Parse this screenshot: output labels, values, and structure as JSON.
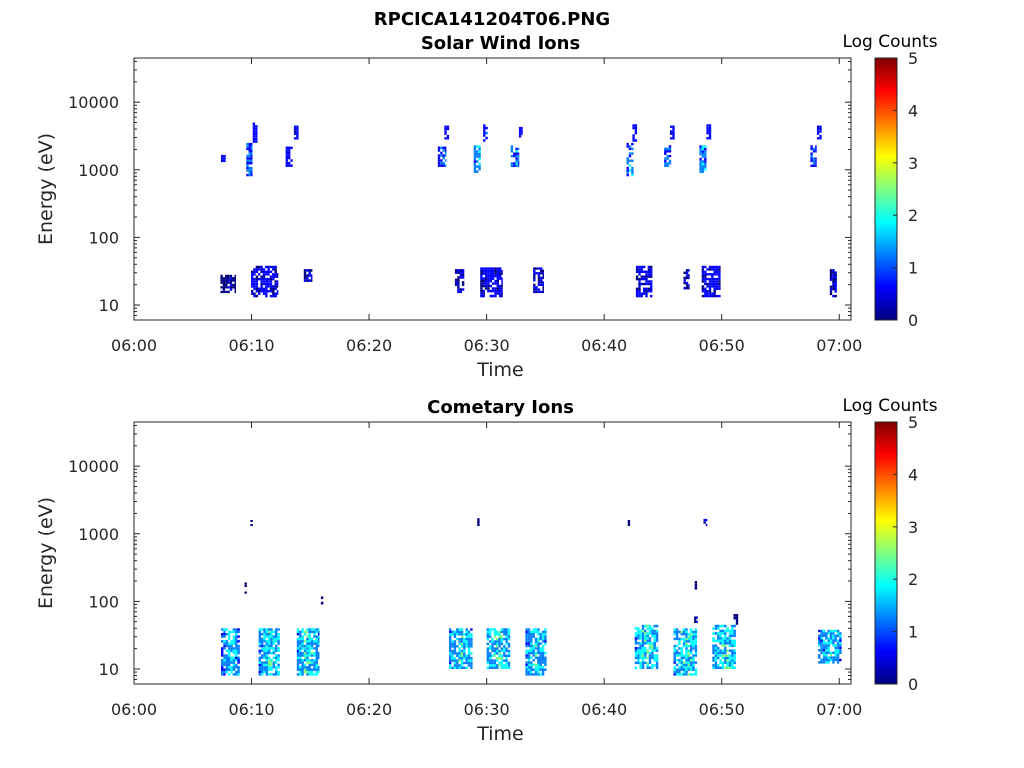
{
  "figure": {
    "title": "RPCICA141204T06.PNG"
  },
  "colormap": [
    "#00007f",
    "#0000ff",
    "#007fff",
    "#00ffff",
    "#7fff7f",
    "#ffff00",
    "#ff7f00",
    "#ff0000",
    "#7f0000"
  ],
  "chart_data": [
    {
      "type": "heatmap",
      "title": "Solar Wind Ions",
      "xlabel": "Time",
      "ylabel": "Energy (eV)",
      "x_ticks": [
        "06:00",
        "06:10",
        "06:20",
        "06:30",
        "06:40",
        "06:50",
        "07:00"
      ],
      "y_ticks": [
        "10",
        "100",
        "1000",
        "10000"
      ],
      "y_scale": "log",
      "xlim": [
        "06:00",
        "07:01"
      ],
      "ylim": [
        6,
        45000
      ],
      "colorbar": {
        "label": "Log Counts",
        "range": [
          0,
          5
        ],
        "ticks": [
          "0",
          "1",
          "2",
          "3",
          "4",
          "5"
        ]
      },
      "blobs": [
        {
          "t": 7.6,
          "dt": 0.4,
          "e_lo": 1300,
          "e_hi": 1800,
          "v": 0.6
        },
        {
          "t": 9.8,
          "dt": 0.5,
          "e_lo": 800,
          "e_hi": 2500,
          "v": 1.2
        },
        {
          "t": 10.3,
          "dt": 0.4,
          "e_lo": 2500,
          "e_hi": 5000,
          "v": 0.7
        },
        {
          "t": 13.2,
          "dt": 0.6,
          "e_lo": 1100,
          "e_hi": 2200,
          "v": 0.8
        },
        {
          "t": 13.8,
          "dt": 0.4,
          "e_lo": 2800,
          "e_hi": 4500,
          "v": 0.6
        },
        {
          "t": 8.0,
          "dt": 1.3,
          "e_lo": 15,
          "e_hi": 28,
          "v": 0.3
        },
        {
          "t": 11.1,
          "dt": 2.3,
          "e_lo": 13,
          "e_hi": 38,
          "v": 0.5
        },
        {
          "t": 14.8,
          "dt": 0.7,
          "e_lo": 22,
          "e_hi": 34,
          "v": 0.4
        },
        {
          "t": 26.2,
          "dt": 0.7,
          "e_lo": 1100,
          "e_hi": 2200,
          "v": 1.1
        },
        {
          "t": 26.6,
          "dt": 0.4,
          "e_lo": 2800,
          "e_hi": 4500,
          "v": 0.7
        },
        {
          "t": 29.2,
          "dt": 0.6,
          "e_lo": 900,
          "e_hi": 2300,
          "v": 1.8
        },
        {
          "t": 29.9,
          "dt": 0.4,
          "e_lo": 2600,
          "e_hi": 4700,
          "v": 0.8
        },
        {
          "t": 32.4,
          "dt": 0.7,
          "e_lo": 1100,
          "e_hi": 2300,
          "v": 1.4
        },
        {
          "t": 32.9,
          "dt": 0.3,
          "e_lo": 3000,
          "e_hi": 4300,
          "v": 0.6
        },
        {
          "t": 27.7,
          "dt": 0.8,
          "e_lo": 15,
          "e_hi": 34,
          "v": 0.4
        },
        {
          "t": 30.4,
          "dt": 1.9,
          "e_lo": 13,
          "e_hi": 36,
          "v": 0.5
        },
        {
          "t": 34.4,
          "dt": 0.9,
          "e_lo": 15,
          "e_hi": 36,
          "v": 0.4
        },
        {
          "t": 42.2,
          "dt": 0.6,
          "e_lo": 800,
          "e_hi": 2500,
          "v": 1.6
        },
        {
          "t": 42.6,
          "dt": 0.4,
          "e_lo": 2600,
          "e_hi": 4700,
          "v": 0.7
        },
        {
          "t": 45.4,
          "dt": 0.6,
          "e_lo": 1100,
          "e_hi": 2300,
          "v": 1.3
        },
        {
          "t": 45.8,
          "dt": 0.4,
          "e_lo": 2800,
          "e_hi": 4500,
          "v": 0.7
        },
        {
          "t": 48.4,
          "dt": 0.6,
          "e_lo": 900,
          "e_hi": 2300,
          "v": 1.5
        },
        {
          "t": 48.9,
          "dt": 0.4,
          "e_lo": 2800,
          "e_hi": 4700,
          "v": 0.7
        },
        {
          "t": 43.4,
          "dt": 1.4,
          "e_lo": 13,
          "e_hi": 38,
          "v": 0.5
        },
        {
          "t": 47.0,
          "dt": 0.5,
          "e_lo": 17,
          "e_hi": 34,
          "v": 0.4
        },
        {
          "t": 49.1,
          "dt": 1.6,
          "e_lo": 13,
          "e_hi": 38,
          "v": 0.5
        },
        {
          "t": 57.8,
          "dt": 0.5,
          "e_lo": 1100,
          "e_hi": 2300,
          "v": 1.1
        },
        {
          "t": 58.3,
          "dt": 0.4,
          "e_lo": 2800,
          "e_hi": 4500,
          "v": 0.7
        },
        {
          "t": 59.5,
          "dt": 0.6,
          "e_lo": 13,
          "e_hi": 34,
          "v": 0.4
        }
      ]
    },
    {
      "type": "heatmap",
      "title": "Cometary Ions",
      "xlabel": "Time",
      "ylabel": "Energy (eV)",
      "x_ticks": [
        "06:00",
        "06:10",
        "06:20",
        "06:30",
        "06:40",
        "06:50",
        "07:00"
      ],
      "y_ticks": [
        "10",
        "100",
        "1000",
        "10000"
      ],
      "y_scale": "log",
      "xlim": [
        "06:00",
        "07:01"
      ],
      "ylim": [
        6,
        45000
      ],
      "colorbar": {
        "label": "Log Counts",
        "range": [
          0,
          5
        ],
        "ticks": [
          "0",
          "1",
          "2",
          "3",
          "4",
          "5"
        ]
      },
      "blobs": [
        {
          "t": 8.2,
          "dt": 1.6,
          "e_lo": 8,
          "e_hi": 40,
          "v": 1.7
        },
        {
          "t": 11.5,
          "dt": 1.8,
          "e_lo": 8,
          "e_hi": 40,
          "v": 1.9
        },
        {
          "t": 14.8,
          "dt": 1.9,
          "e_lo": 8,
          "e_hi": 40,
          "v": 2.0
        },
        {
          "t": 27.8,
          "dt": 2.0,
          "e_lo": 10,
          "e_hi": 40,
          "v": 1.9
        },
        {
          "t": 31.0,
          "dt": 2.0,
          "e_lo": 10,
          "e_hi": 40,
          "v": 2.0
        },
        {
          "t": 34.2,
          "dt": 1.8,
          "e_lo": 8,
          "e_hi": 40,
          "v": 1.9
        },
        {
          "t": 43.6,
          "dt": 2.0,
          "e_lo": 10,
          "e_hi": 45,
          "v": 2.0
        },
        {
          "t": 46.9,
          "dt": 2.0,
          "e_lo": 8,
          "e_hi": 40,
          "v": 2.0
        },
        {
          "t": 50.2,
          "dt": 2.0,
          "e_lo": 10,
          "e_hi": 45,
          "v": 2.0
        },
        {
          "t": 59.2,
          "dt": 2.0,
          "e_lo": 12,
          "e_hi": 38,
          "v": 1.8
        },
        {
          "t": 10.0,
          "dt": 0.2,
          "e_lo": 1300,
          "e_hi": 1600,
          "v": 0.3
        },
        {
          "t": 29.3,
          "dt": 0.2,
          "e_lo": 1300,
          "e_hi": 1700,
          "v": 0.3
        },
        {
          "t": 42.1,
          "dt": 0.2,
          "e_lo": 1300,
          "e_hi": 1600,
          "v": 0.3
        },
        {
          "t": 48.6,
          "dt": 0.3,
          "e_lo": 1300,
          "e_hi": 1800,
          "v": 0.5
        },
        {
          "t": 9.5,
          "dt": 0.2,
          "e_lo": 130,
          "e_hi": 190,
          "v": 0.3
        },
        {
          "t": 16.0,
          "dt": 0.2,
          "e_lo": 90,
          "e_hi": 130,
          "v": 0.3
        },
        {
          "t": 47.8,
          "dt": 0.2,
          "e_lo": 150,
          "e_hi": 200,
          "v": 0.3
        },
        {
          "t": 47.8,
          "dt": 0.3,
          "e_lo": 48,
          "e_hi": 60,
          "v": 0.4
        },
        {
          "t": 51.2,
          "dt": 0.4,
          "e_lo": 45,
          "e_hi": 65,
          "v": 0.3
        }
      ]
    }
  ]
}
